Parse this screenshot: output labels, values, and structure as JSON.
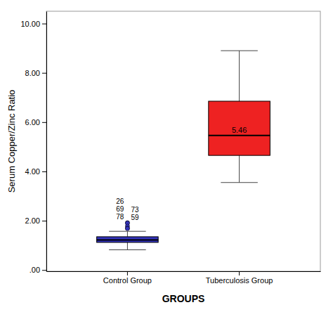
{
  "chart_data": {
    "type": "box",
    "xlabel": "GROUPS",
    "ylabel": "Serum Copper/Zinc Ratio",
    "categories": [
      "Control Group",
      "Tuberculosis Group"
    ],
    "ylim": [
      -0.05,
      10.5
    ],
    "yticks": [
      {
        "value": 0.0,
        "label": ".00"
      },
      {
        "value": 2.0,
        "label": "2.00"
      },
      {
        "value": 4.0,
        "label": "4.00"
      },
      {
        "value": 6.0,
        "label": "6.00"
      },
      {
        "value": 8.0,
        "label": "8.00"
      },
      {
        "value": 10.0,
        "label": "10.00"
      }
    ],
    "boxes": [
      {
        "q1": 1.12,
        "median": 1.22,
        "q3": 1.35,
        "whisker_low": 0.82,
        "whisker_high": 1.57,
        "color": "#3333bb",
        "outliers": [
          1.92,
          1.9,
          1.78,
          1.7,
          1.68
        ],
        "outlier_labels": [
          "78",
          "59",
          "69",
          "73",
          "26"
        ]
      },
      {
        "q1": 4.65,
        "median": 5.46,
        "q3": 6.85,
        "whisker_low": 3.55,
        "whisker_high": 8.9,
        "color": "#ee2222",
        "median_label": "5.46"
      }
    ]
  }
}
